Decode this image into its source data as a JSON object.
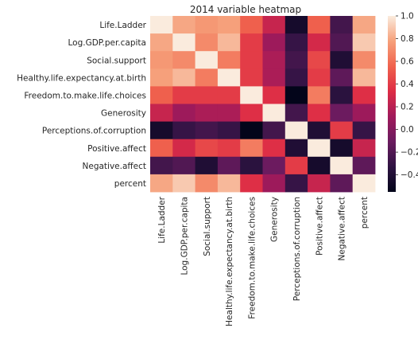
{
  "chart_data": {
    "type": "heatmap",
    "title": "2014 variable heatmap",
    "xlabel": "",
    "ylabel": "",
    "rows": [
      "Life.Ladder",
      "Log.GDP.per.capita",
      "Social.support",
      "Healthy.life.expectancy.at.birth",
      "Freedom.to.make.life.choices",
      "Generosity",
      "Perceptions.of.corruption",
      "Positive.affect",
      "Negative.affect",
      "percent"
    ],
    "columns": [
      "Life.Ladder",
      "Log.GDP.per.capita",
      "Social.support",
      "Healthy.life.expectancy.at.birth",
      "Freedom.to.make.life.choices",
      "Generosity",
      "Perceptions.of.corruption",
      "Positive.affect",
      "Negative.affect",
      "percent"
    ],
    "values": [
      [
        1.0,
        0.8,
        0.75,
        0.78,
        0.55,
        0.25,
        -0.45,
        0.55,
        -0.25,
        0.8
      ],
      [
        0.8,
        1.0,
        0.7,
        0.85,
        0.4,
        0.1,
        -0.3,
        0.3,
        -0.2,
        0.9
      ],
      [
        0.75,
        0.7,
        1.0,
        0.65,
        0.4,
        0.15,
        -0.25,
        0.45,
        -0.4,
        0.7
      ],
      [
        0.78,
        0.85,
        0.65,
        1.0,
        0.4,
        0.15,
        -0.3,
        0.4,
        -0.15,
        0.85
      ],
      [
        0.55,
        0.4,
        0.4,
        0.4,
        1.0,
        0.35,
        -0.55,
        0.65,
        -0.35,
        0.35
      ],
      [
        0.25,
        0.1,
        0.15,
        0.15,
        0.35,
        1.0,
        -0.25,
        0.35,
        -0.1,
        0.1
      ],
      [
        -0.45,
        -0.3,
        -0.25,
        -0.3,
        -0.55,
        -0.25,
        1.0,
        -0.4,
        0.4,
        -0.3
      ],
      [
        0.55,
        0.3,
        0.45,
        0.4,
        0.65,
        0.35,
        -0.4,
        1.0,
        -0.45,
        0.25
      ],
      [
        -0.25,
        -0.2,
        -0.4,
        -0.15,
        -0.35,
        -0.1,
        0.4,
        -0.45,
        1.0,
        -0.15
      ],
      [
        0.8,
        0.9,
        0.7,
        0.85,
        0.35,
        0.1,
        -0.3,
        0.25,
        -0.15,
        1.0
      ]
    ],
    "colorbar": {
      "min": -0.55,
      "max": 1.0,
      "ticks": [
        1.0,
        0.8,
        0.6,
        0.4,
        0.2,
        0.0,
        -0.2,
        -0.4
      ],
      "tick_labels": [
        "1.0",
        "0.8",
        "0.6",
        "0.4",
        "0.2",
        "0.0",
        "−0.2",
        "−0.4"
      ]
    },
    "colormap": "rocket",
    "colormap_stops": [
      "#03051a",
      "#2e1342",
      "#6a1b5f",
      "#a11a5b",
      "#dd2c45",
      "#f0624d",
      "#f6a07a",
      "#faebdd"
    ],
    "grid": false
  }
}
